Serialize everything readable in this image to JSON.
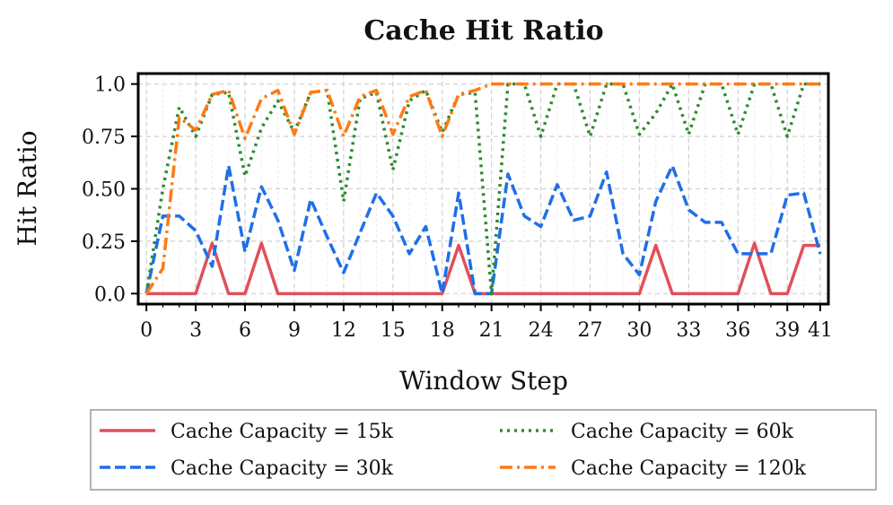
{
  "chart_data": {
    "type": "line",
    "title": "Cache Hit Ratio",
    "xlabel": "Window Step",
    "ylabel": "Hit Ratio",
    "xlim": [
      -0.5,
      41.5
    ],
    "ylim": [
      -0.05,
      1.05
    ],
    "xticks": [
      0,
      3,
      6,
      9,
      12,
      15,
      18,
      21,
      24,
      27,
      30,
      33,
      36,
      39,
      41
    ],
    "xtick_labels": [
      "0",
      "3",
      "6",
      "9",
      "12",
      "15",
      "18",
      "21",
      "24",
      "27",
      "30",
      "33",
      "36",
      "39",
      "41"
    ],
    "yticks": [
      0.0,
      0.25,
      0.5,
      0.75,
      1.0
    ],
    "ytick_labels": [
      "0.0",
      "0.25",
      "0.50",
      "0.75",
      "1.0"
    ],
    "grid": true,
    "legend_position": "below-center",
    "x": [
      0,
      1,
      2,
      3,
      4,
      5,
      6,
      7,
      8,
      9,
      10,
      11,
      12,
      13,
      14,
      15,
      16,
      17,
      18,
      19,
      20,
      21,
      22,
      23,
      24,
      25,
      26,
      27,
      28,
      29,
      30,
      31,
      32,
      33,
      34,
      35,
      36,
      37,
      38,
      39,
      40,
      41
    ],
    "series": [
      {
        "name": "Cache Capacity = 15k",
        "color": "#e0505a",
        "dash": "solid",
        "values": [
          0,
          0,
          0,
          0,
          0.24,
          0,
          0,
          0.24,
          0,
          0,
          0,
          0,
          0,
          0,
          0,
          0,
          0,
          0,
          0,
          0.23,
          0,
          0,
          0,
          0,
          0,
          0,
          0,
          0,
          0,
          0,
          0,
          0.23,
          0,
          0,
          0,
          0,
          0,
          0.24,
          0,
          0,
          0.23,
          0.23
        ]
      },
      {
        "name": "Cache Capacity = 30k",
        "color": "#1f6fe8",
        "dash": "dashed",
        "values": [
          0,
          0.37,
          0.37,
          0.3,
          0.13,
          0.61,
          0.2,
          0.51,
          0.35,
          0.11,
          0.45,
          0.27,
          0.1,
          0.29,
          0.48,
          0.37,
          0.19,
          0.32,
          0,
          0.48,
          0,
          0,
          0.57,
          0.37,
          0.32,
          0.52,
          0.35,
          0.37,
          0.58,
          0.19,
          0.09,
          0.44,
          0.61,
          0.4,
          0.34,
          0.34,
          0.19,
          0.19,
          0.19,
          0.47,
          0.48,
          0.19
        ]
      },
      {
        "name": "Cache Capacity = 60k",
        "color": "#2e8b2e",
        "dash": "dotted",
        "values": [
          0,
          0.5,
          0.89,
          0.75,
          0.95,
          0.96,
          0.56,
          0.79,
          0.92,
          0.77,
          0.96,
          0.97,
          0.44,
          0.93,
          0.96,
          0.59,
          0.92,
          0.97,
          0.77,
          0.95,
          0.96,
          0,
          1,
          1,
          0.75,
          1,
          1,
          0.75,
          1,
          1,
          0.76,
          0.86,
          1,
          0.76,
          1,
          1,
          0.76,
          1,
          1,
          0.75,
          1,
          1
        ]
      },
      {
        "name": "Cache Capacity = 120k",
        "color": "#ff7a14",
        "dash": "dashdot",
        "values": [
          0,
          0.12,
          0.84,
          0.78,
          0.95,
          0.97,
          0.74,
          0.93,
          0.97,
          0.76,
          0.96,
          0.97,
          0.75,
          0.94,
          0.97,
          0.76,
          0.94,
          0.97,
          0.75,
          0.95,
          0.97,
          1,
          1,
          1,
          1,
          1,
          1,
          1,
          1,
          1,
          1,
          1,
          1,
          1,
          1,
          1,
          1,
          1,
          1,
          1,
          1,
          1
        ]
      }
    ]
  }
}
